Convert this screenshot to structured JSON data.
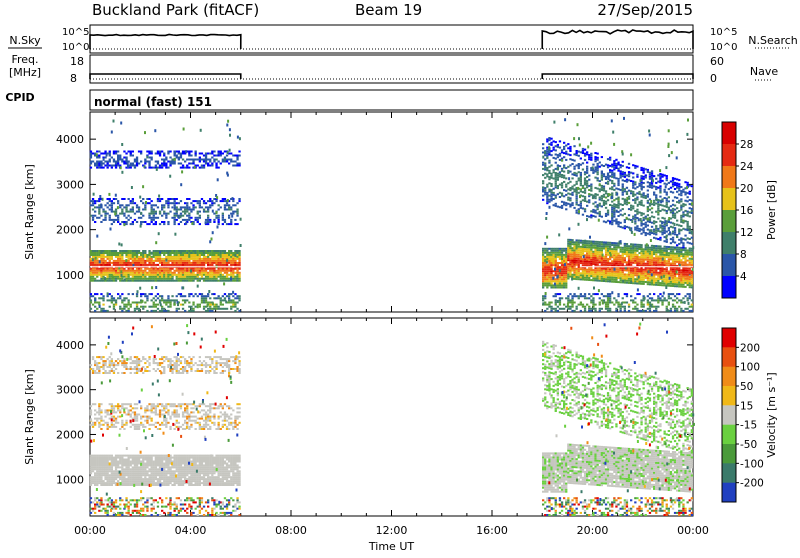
{
  "header": {
    "site": "Buckland Park (fitACF)",
    "beam": "Beam 19",
    "date": "27/Sep/2015"
  },
  "colors": {
    "axis": "#000000",
    "noise_line": "#000000",
    "mark_line": "#ffffff",
    "power_scale": [
      "#0000ff",
      "#2a56a8",
      "#3f7f6a",
      "#5a9e3a",
      "#e6c21a",
      "#f07818",
      "#e52a12",
      "#d80000"
    ],
    "velocity_scale": [
      "#2040c0",
      "#3a7a6a",
      "#4a9a3a",
      "#6ad040",
      "#c6c6c0",
      "#f0b818",
      "#f08c18",
      "#e85010",
      "#e00000"
    ]
  },
  "chart_data": [
    {
      "type": "line",
      "name": "noise-panel",
      "left_labels": [
        "N.Sky"
      ],
      "right_labels": [
        "N.Search"
      ],
      "left_ticks": [
        "10^5",
        "10^0"
      ],
      "right_ticks": [
        "10^5",
        "10^0"
      ],
      "series": [
        {
          "segments": [
            [
              0.0,
              6.0
            ],
            [
              18.0,
              24.0
            ]
          ],
          "level_sky": [
            0.82,
            0.97
          ],
          "level_search": [
            0.78,
            0.96
          ]
        }
      ]
    },
    {
      "type": "line",
      "name": "freq-panel",
      "left_labels": [
        "Freq.",
        "[MHz]"
      ],
      "right_labels": [
        "Nave"
      ],
      "left_ticks": [
        "18",
        "8"
      ],
      "right_ticks": [
        "60",
        "0"
      ],
      "series": [
        {
          "segments": [
            [
              0.0,
              6.0
            ],
            [
              18.0,
              24.0
            ]
          ],
          "value_freq": 8
        }
      ]
    },
    {
      "type": "table",
      "name": "cpid-panel",
      "label": "CPID",
      "text": "normal (fast) 151"
    },
    {
      "type": "heatmap",
      "name": "power-panel",
      "ylabel": "Slant Range [km]",
      "y_ticks": [
        1000,
        2000,
        3000,
        4000
      ],
      "ylim": [
        180,
        4600
      ],
      "xlim": [
        0,
        24
      ],
      "colorbar": {
        "label": "Power [dB]",
        "ticks": [
          4,
          8,
          12,
          16,
          20,
          24,
          28
        ],
        "range": [
          0,
          30
        ]
      },
      "echo_bands": [
        {
          "t": [
            0.0,
            6.0
          ],
          "range": [
            850,
            1550
          ],
          "center": 1200,
          "peak_db": 26
        },
        {
          "t": [
            0.0,
            6.0
          ],
          "range": [
            2100,
            2700
          ],
          "center": 2400,
          "peak_db": 8
        },
        {
          "t": [
            0.0,
            6.0
          ],
          "range": [
            3350,
            3750
          ],
          "center": 3550,
          "peak_db": 6
        },
        {
          "t": [
            0.0,
            6.0
          ],
          "range": [
            180,
            600
          ],
          "center": 350,
          "peak_db": 14
        },
        {
          "t": [
            18.0,
            24.0
          ],
          "range": [
            700,
            1600
          ],
          "center": 1100,
          "peak_db": 26
        },
        {
          "t": [
            18.0,
            24.0
          ],
          "range": [
            1900,
            3400
          ],
          "center": 2500,
          "peak_db": 10
        },
        {
          "t": [
            18.0,
            24.0
          ],
          "range": [
            180,
            600
          ],
          "center": 350,
          "peak_db": 14
        }
      ]
    },
    {
      "type": "heatmap",
      "name": "velocity-panel",
      "ylabel": "Slant Range [km]",
      "y_ticks": [
        1000,
        2000,
        3000,
        4000
      ],
      "ylim": [
        180,
        4600
      ],
      "xlim": [
        0,
        24
      ],
      "xlabel": "Time UT",
      "x_ticks": [
        "00:00",
        "04:00",
        "08:00",
        "12:00",
        "16:00",
        "20:00",
        "00:00"
      ],
      "colorbar": {
        "label": "Velocity [m s⁻¹]",
        "ticks": [
          "200",
          "100",
          "50",
          "15",
          "-15",
          "-50",
          "-100",
          "-200"
        ]
      }
    }
  ]
}
